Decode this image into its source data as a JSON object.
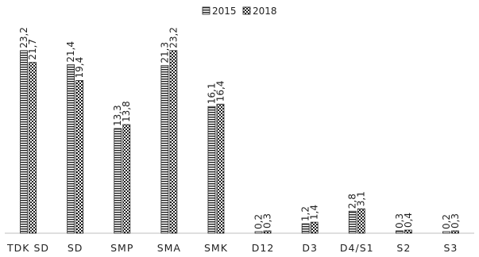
{
  "chart_data": {
    "type": "bar",
    "categories": [
      "TDK SD",
      "SD",
      "SMP",
      "SMA",
      "SMK",
      "D12",
      "D3",
      "D4/S1",
      "S2",
      "S3"
    ],
    "series": [
      {
        "name": "2015",
        "values": [
          23.2,
          21.4,
          13.3,
          21.3,
          16.1,
          0.2,
          1.2,
          2.8,
          0.3,
          0.2
        ],
        "labels": [
          "23,2",
          "21,4",
          "13,3",
          "21,3",
          "16,1",
          "0,2",
          "1,2",
          "2,8",
          "0,3",
          "0,2"
        ],
        "pattern": "horizontal-lines"
      },
      {
        "name": "2018",
        "values": [
          21.7,
          19.4,
          13.8,
          23.2,
          16.4,
          0.3,
          1.4,
          3.1,
          0.4,
          0.3
        ],
        "labels": [
          "21,7",
          "19,4",
          "13,8",
          "23,2",
          "16,4",
          "0,3",
          "1,4",
          "3,1",
          "0,4",
          "0,3"
        ],
        "pattern": "checkered"
      }
    ],
    "ylim": [
      0,
      26
    ],
    "grid": false,
    "legend_position": "top-center",
    "colors": {
      "bar_stroke": "#222222",
      "text": "#222222",
      "axis": "#bfbfbf"
    }
  }
}
